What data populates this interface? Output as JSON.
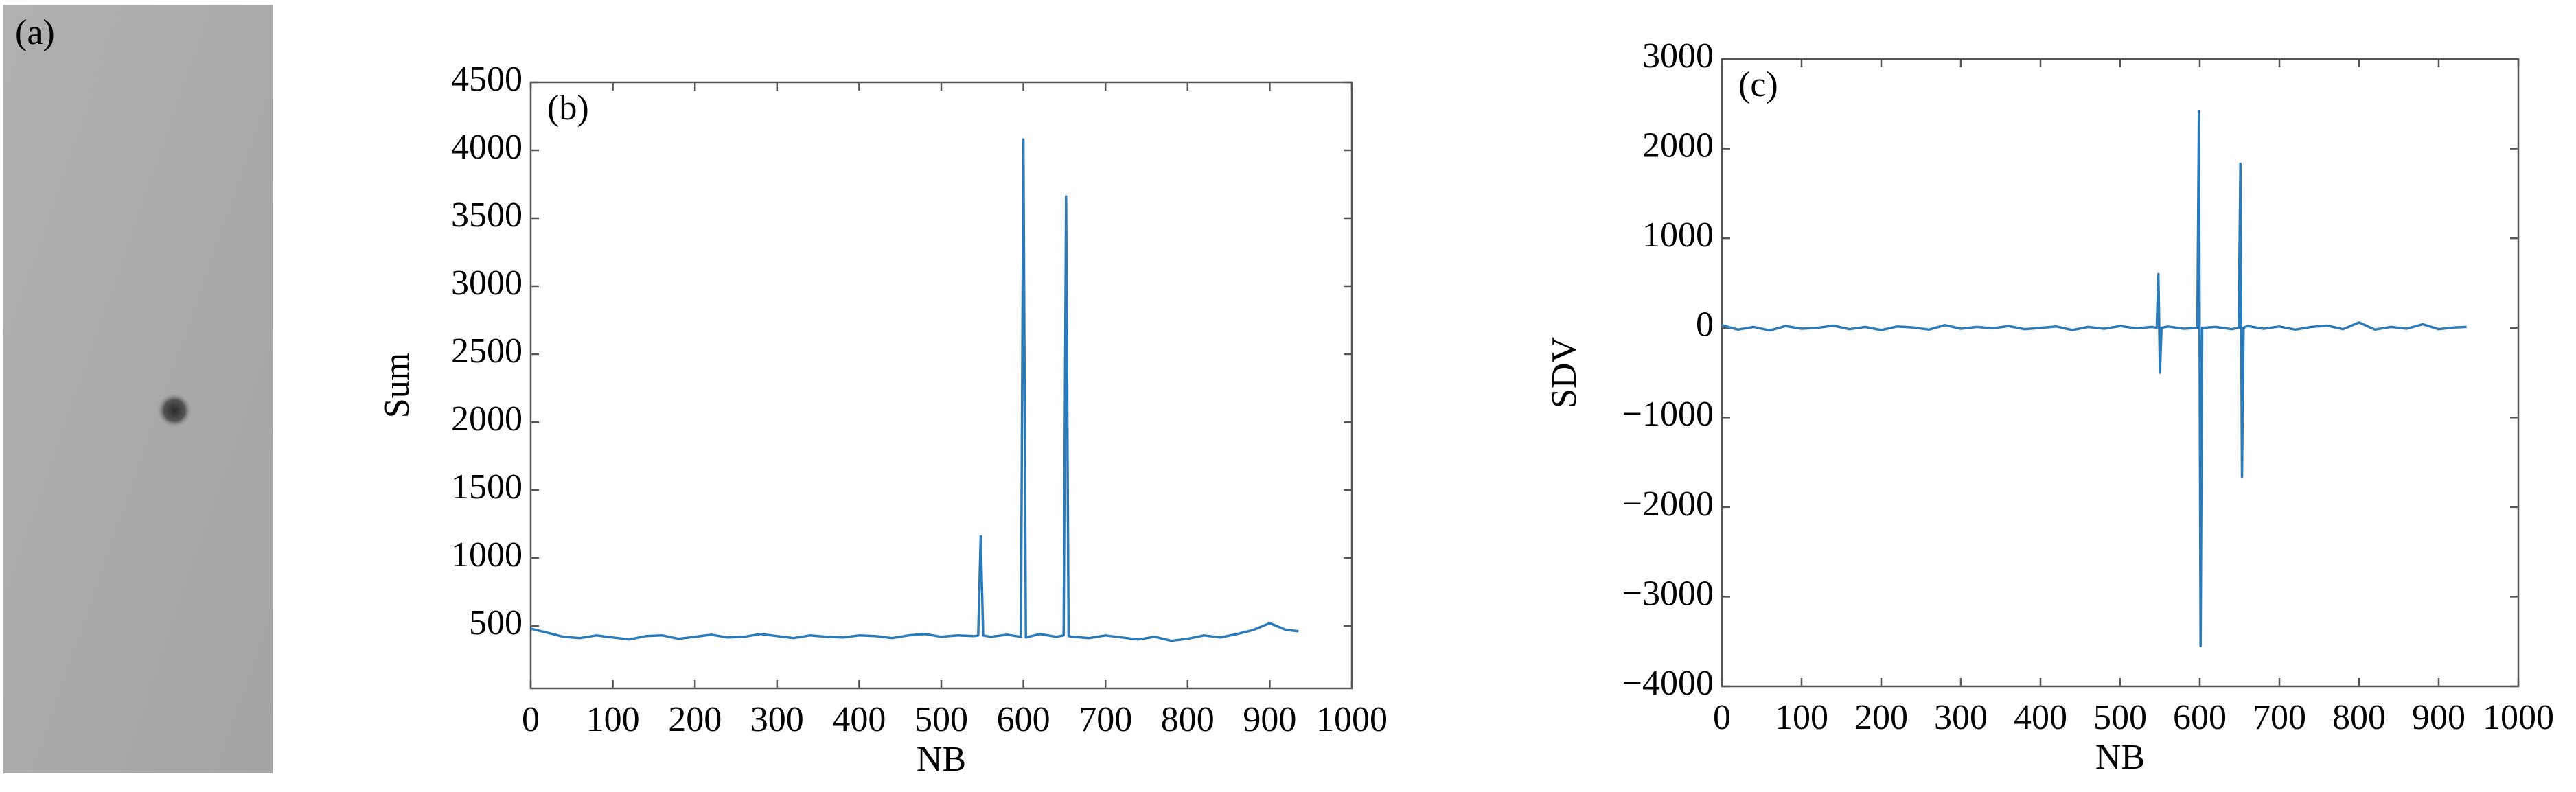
{
  "image_panel": {
    "label": "(a)"
  },
  "chart_data": [
    {
      "type": "line",
      "panel_label": "(b)",
      "xlabel": "NB",
      "ylabel": "Sum",
      "color": "#2b7bba",
      "xlim": [
        0,
        1000
      ],
      "ylim": [
        40,
        4500
      ],
      "xticks": [
        0,
        100,
        200,
        300,
        400,
        500,
        600,
        700,
        800,
        900,
        1000
      ],
      "yticks": [
        500,
        1000,
        1500,
        2000,
        2500,
        3000,
        3500,
        4000,
        4500
      ],
      "x": [
        0,
        20,
        40,
        60,
        80,
        100,
        120,
        140,
        160,
        180,
        200,
        220,
        240,
        260,
        280,
        300,
        320,
        340,
        360,
        380,
        400,
        420,
        440,
        460,
        480,
        500,
        520,
        540,
        545,
        548,
        551,
        560,
        580,
        597,
        600,
        603,
        620,
        640,
        649,
        652,
        655,
        660,
        680,
        700,
        720,
        740,
        760,
        780,
        800,
        820,
        840,
        860,
        880,
        900,
        920,
        935
      ],
      "values": [
        480,
        450,
        420,
        410,
        430,
        415,
        400,
        425,
        430,
        405,
        420,
        435,
        415,
        420,
        440,
        425,
        410,
        430,
        420,
        415,
        430,
        425,
        410,
        430,
        440,
        420,
        430,
        425,
        430,
        1160,
        430,
        420,
        435,
        420,
        4080,
        415,
        440,
        420,
        430,
        3660,
        425,
        420,
        410,
        430,
        415,
        400,
        420,
        390,
        405,
        430,
        415,
        440,
        470,
        520,
        470,
        460
      ]
    },
    {
      "type": "line",
      "panel_label": "(c)",
      "xlabel": "NB",
      "ylabel": "SDV",
      "color": "#2b7bba",
      "xlim": [
        0,
        1000
      ],
      "ylim": [
        -4000,
        3000
      ],
      "xticks": [
        0,
        100,
        200,
        300,
        400,
        500,
        600,
        700,
        800,
        900,
        1000
      ],
      "yticks": [
        {
          "value": -4000,
          "label": "−4000"
        },
        {
          "value": -3000,
          "label": "−3000"
        },
        {
          "value": -2000,
          "label": "−2000"
        },
        {
          "value": -1000,
          "label": "−1000"
        },
        0,
        1000,
        2000,
        3000
      ],
      "x": [
        0,
        20,
        40,
        60,
        80,
        100,
        120,
        140,
        160,
        180,
        200,
        220,
        240,
        260,
        280,
        300,
        320,
        340,
        360,
        380,
        400,
        420,
        440,
        460,
        480,
        500,
        520,
        540,
        546,
        548,
        550,
        552,
        560,
        580,
        597,
        599,
        601,
        603,
        620,
        640,
        649,
        651,
        653,
        655,
        660,
        680,
        700,
        720,
        740,
        760,
        780,
        800,
        820,
        840,
        860,
        880,
        900,
        920,
        935
      ],
      "values": [
        30,
        -20,
        10,
        -30,
        20,
        -10,
        0,
        25,
        -15,
        10,
        -25,
        15,
        5,
        -20,
        30,
        -10,
        10,
        -5,
        20,
        -15,
        0,
        15,
        -25,
        10,
        -10,
        20,
        -5,
        10,
        0,
        600,
        -500,
        0,
        15,
        -10,
        0,
        2420,
        -3550,
        0,
        10,
        -15,
        0,
        1830,
        -1660,
        0,
        20,
        -10,
        15,
        -20,
        10,
        25,
        -15,
        60,
        -20,
        10,
        -10,
        40,
        -15,
        5,
        10
      ]
    }
  ]
}
